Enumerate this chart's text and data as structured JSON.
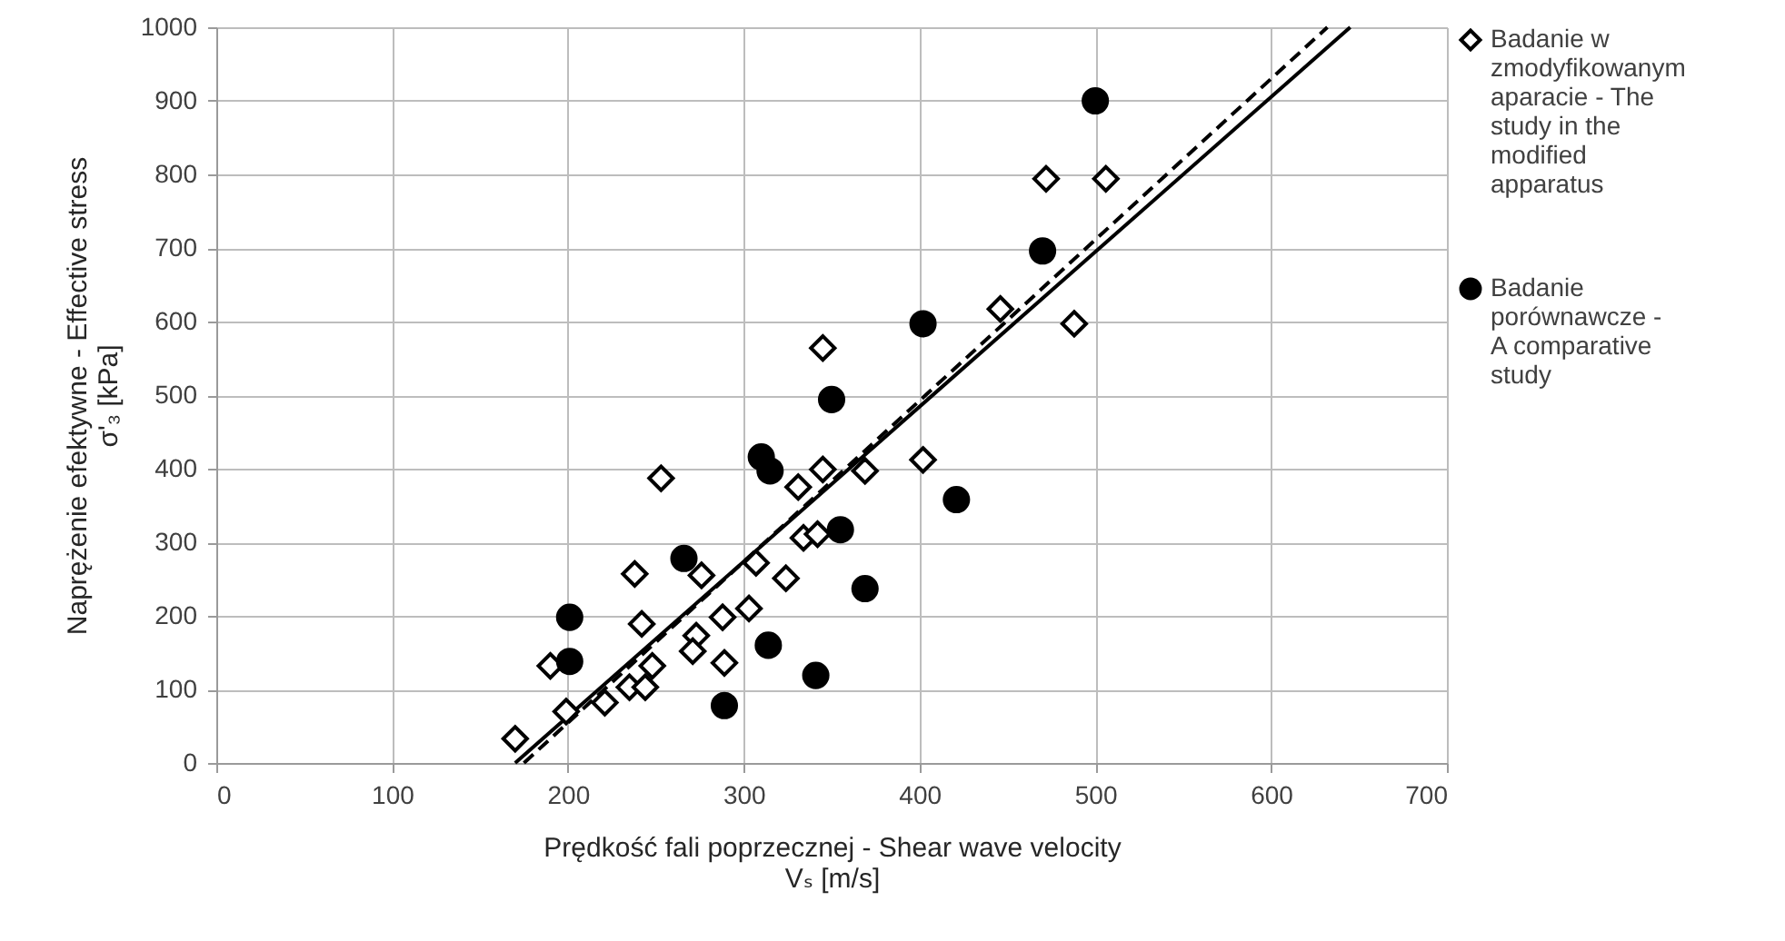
{
  "chart_data": {
    "type": "scatter",
    "xlabel": "Prędkość fali poprzecznej - Shear wave velocity\nVₛ [m/s]",
    "ylabel": "Naprężenie efektywne - Effective stress\nσ'₃ [kPa]",
    "xlim": [
      0,
      700
    ],
    "xticks": [
      0,
      100,
      200,
      300,
      400,
      500,
      600,
      700
    ],
    "ylim": [
      0,
      1000
    ],
    "yticks": [
      0,
      100,
      200,
      300,
      400,
      500,
      600,
      700,
      800,
      900,
      1000
    ],
    "grid": true,
    "legend": "right",
    "series": [
      {
        "name": "Badanie w zmodyfikowanym aparacie - The study in the modified apparatus",
        "marker": "diamond",
        "color": "#000000",
        "x": [
          170,
          199,
          190,
          221,
          235,
          244,
          248,
          242,
          238,
          253,
          276,
          273,
          271,
          288,
          289,
          303,
          307,
          324,
          331,
          334,
          342,
          345,
          369,
          402,
          345,
          446,
          488,
          472,
          506
        ],
        "values": [
          33,
          70,
          132,
          82,
          103,
          103,
          132,
          189,
          257,
          387,
          255,
          173,
          152,
          198,
          136,
          210,
          272,
          251,
          375,
          306,
          311,
          399,
          397,
          412,
          564,
          617,
          597,
          794,
          794
        ]
      },
      {
        "name": "Badanie porównawcze - A comparative study",
        "marker": "circle",
        "color": "#000000",
        "x": [
          201,
          201,
          266,
          289,
          314,
          310,
          315,
          341,
          355,
          369,
          421,
          350,
          402,
          470,
          500
        ],
        "values": [
          198,
          138,
          278,
          78,
          160,
          416,
          397,
          119,
          317,
          237,
          358,
          494,
          597,
          696,
          900
        ]
      },
      {
        "type": "line",
        "line_style": "solid",
        "color": "#000000",
        "x": [
          170,
          645
        ],
        "values": [
          0,
          1000
        ]
      },
      {
        "type": "line",
        "line_style": "dashed",
        "color": "#000000",
        "x": [
          175,
          632
        ],
        "values": [
          0,
          1000
        ]
      }
    ]
  }
}
